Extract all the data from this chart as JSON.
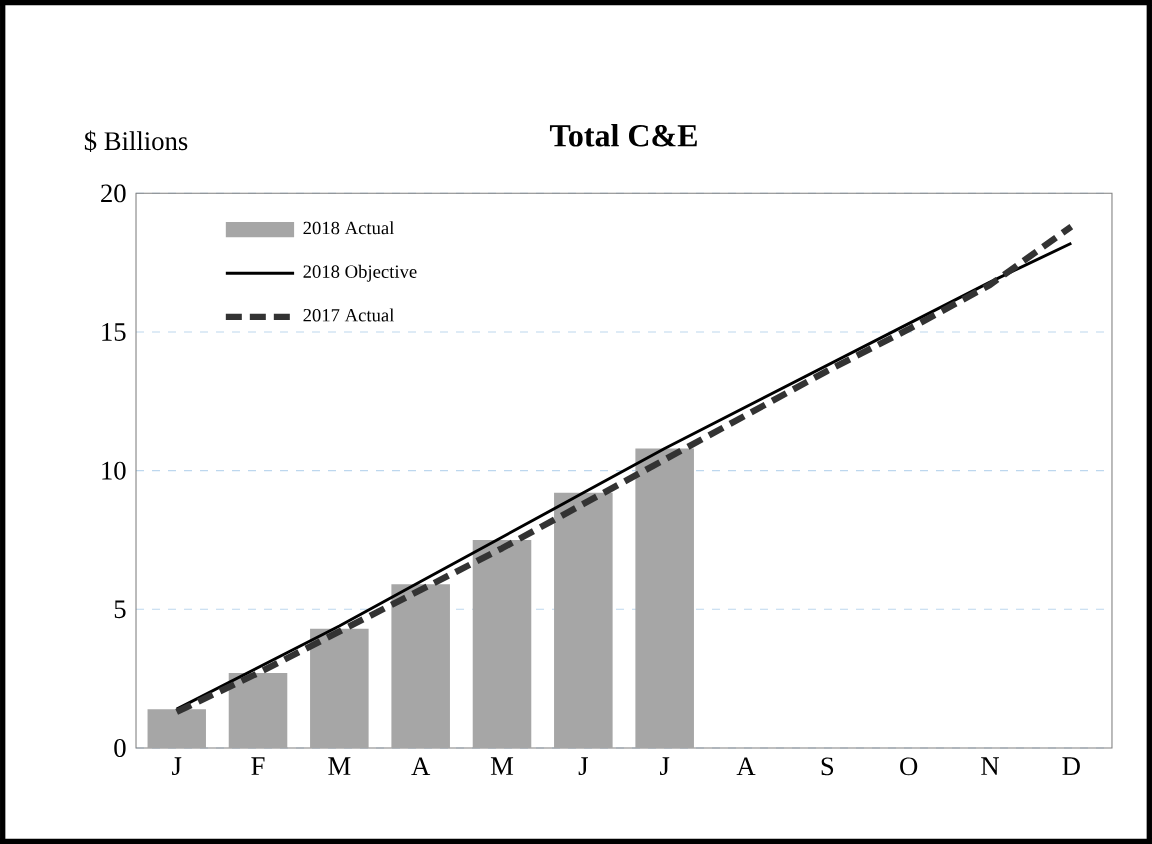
{
  "chart_data": {
    "type": "bar",
    "title": "Total C&E",
    "ylabel": "$ Billions",
    "categories": [
      "J",
      "F",
      "M",
      "A",
      "M",
      "J",
      "J",
      "A",
      "S",
      "O",
      "N",
      "D"
    ],
    "series": [
      {
        "name": "2018 Actual",
        "color": "#a6a6a6",
        "values": [
          1.4,
          2.7,
          4.3,
          5.9,
          7.5,
          9.2,
          10.8,
          null,
          null,
          null,
          null,
          null
        ]
      },
      {
        "name": "2018 Objective",
        "type": "line",
        "color": "#000000",
        "line_style": "solid",
        "values": [
          1.4,
          2.9,
          4.4,
          6.0,
          7.6,
          9.2,
          10.8,
          12.3,
          13.8,
          15.3,
          16.8,
          18.2
        ]
      },
      {
        "name": "2017 Actual",
        "type": "line",
        "color": "#333333",
        "line_style": "dashed",
        "values": [
          1.3,
          2.7,
          4.2,
          5.7,
          7.2,
          8.8,
          10.4,
          12.0,
          13.6,
          15.1,
          16.7,
          18.8
        ]
      }
    ],
    "ylim": [
      0,
      20
    ],
    "yticks": [
      0,
      5,
      10,
      15,
      20
    ],
    "grid": "y",
    "legend": "top left"
  }
}
